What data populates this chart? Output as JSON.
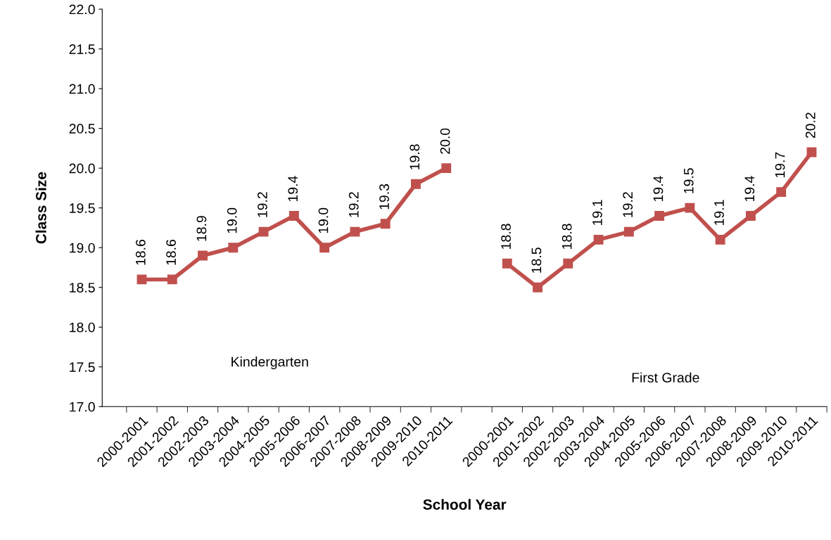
{
  "chart_data": {
    "type": "line",
    "xlabel": "School Year",
    "ylabel": "Class Size",
    "categories": [
      "2000-2001",
      "2001-2002",
      "2002-2003",
      "2003-2004",
      "2004-2005",
      "2005-2006",
      "2006-2007",
      "2007-2008",
      "2008-2009",
      "2009-2010",
      "2010-2011",
      null,
      "2000-2001",
      "2001-2002",
      "2002-2003",
      "2003-2004",
      "2004-2005",
      "2005-2006",
      "2006-2007",
      "2007-2008",
      "2008-2009",
      "2009-2010",
      "2010-2011"
    ],
    "series": [
      {
        "color": "#c0504d",
        "values": [
          18.6,
          18.6,
          18.9,
          19.0,
          19.2,
          19.4,
          19.0,
          19.2,
          19.3,
          19.8,
          20.0,
          null,
          null,
          null,
          null,
          null,
          null,
          null,
          null,
          null,
          null,
          null,
          null
        ],
        "value_labels": [
          "18.6",
          "18.6",
          "18.9",
          "19.0",
          "19.2",
          "19.4",
          "19.0",
          "19.2",
          "19.3",
          "19.8",
          "20.0",
          null,
          null,
          null,
          null,
          null,
          null,
          null,
          null,
          null,
          null,
          null,
          null
        ]
      },
      {
        "color": "#c0504d",
        "values": [
          null,
          null,
          null,
          null,
          null,
          null,
          null,
          null,
          null,
          null,
          null,
          null,
          18.8,
          18.5,
          18.8,
          19.1,
          19.2,
          19.4,
          19.5,
          19.1,
          19.4,
          19.7,
          20.2
        ],
        "value_labels": [
          null,
          null,
          null,
          null,
          null,
          null,
          null,
          null,
          null,
          null,
          null,
          null,
          "18.8",
          "18.5",
          "18.8",
          "19.1",
          "19.2",
          "19.4",
          "19.5",
          "19.1",
          "19.4",
          "19.7",
          "20.2"
        ]
      }
    ],
    "ylim": [
      17,
      22
    ],
    "yticks": [
      {
        "value": 17,
        "label": "17.0"
      },
      {
        "value": 17.5,
        "label": "17.5"
      },
      {
        "value": 18,
        "label": "18.0"
      },
      {
        "value": 18.5,
        "label": "18.5"
      },
      {
        "value": 19,
        "label": "19.0"
      },
      {
        "value": 19.5,
        "label": "19.5"
      },
      {
        "value": 20,
        "label": "20.0"
      },
      {
        "value": 20.5,
        "label": "20.5"
      },
      {
        "value": 21,
        "label": "21.0"
      },
      {
        "value": 21.5,
        "label": "21.5"
      },
      {
        "value": 22,
        "label": "22.0"
      }
    ],
    "annotations": [
      "Kindergarten",
      "First Grade"
    ],
    "marker": "square",
    "line_style": "solid",
    "grid": false,
    "legend": false
  }
}
